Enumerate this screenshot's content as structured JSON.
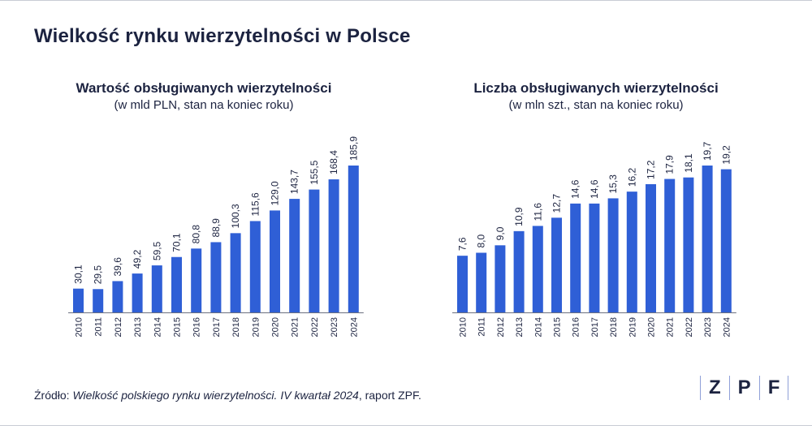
{
  "title": "Wielkość rynku wierzytelności w Polsce",
  "source": {
    "prefix": "Źródło: ",
    "italic": "Wielkość polskiego rynku wierzytelności. IV kwartał 2024",
    "suffix": ", raport ZPF."
  },
  "logo": {
    "letters": [
      "Z",
      "P",
      "F"
    ]
  },
  "colors": {
    "bar": "#2f5fd6",
    "text": "#1c2340",
    "axis": "#6b7080"
  },
  "chart_data": [
    {
      "type": "bar",
      "title": "Wartość obsługiwanych wierzytelności",
      "subtitle": "(w mld PLN, stan na koniec roku)",
      "categories": [
        "2010",
        "2011",
        "2012",
        "2013",
        "2014",
        "2015",
        "2016",
        "2017",
        "2018",
        "2019",
        "2020",
        "2021",
        "2022",
        "2023",
        "2024"
      ],
      "values": [
        30.1,
        29.5,
        39.6,
        49.2,
        59.5,
        70.1,
        80.8,
        88.9,
        100.3,
        115.6,
        129.0,
        143.7,
        155.5,
        168.4,
        185.9
      ],
      "labels": [
        "30,1",
        "29,5",
        "39,6",
        "49,2",
        "59,5",
        "70,1",
        "80,8",
        "88,9",
        "100,3",
        "115,6",
        "129,0",
        "143,7",
        "155,5",
        "168,4",
        "185,9"
      ],
      "ylim": [
        0,
        185.9
      ]
    },
    {
      "type": "bar",
      "title": "Liczba obsługiwanych wierzytelności",
      "subtitle": "(w mln szt., stan na koniec  roku)",
      "categories": [
        "2010",
        "2011",
        "2012",
        "2013",
        "2014",
        "2015",
        "2016",
        "2017",
        "2018",
        "2019",
        "2020",
        "2021",
        "2022",
        "2023",
        "2024"
      ],
      "values": [
        7.6,
        8.0,
        9.0,
        10.9,
        11.6,
        12.7,
        14.6,
        14.6,
        15.3,
        16.2,
        17.2,
        17.9,
        18.1,
        19.7,
        19.2
      ],
      "labels": [
        "7,6",
        "8,0",
        "9,0",
        "10,9",
        "11,6",
        "12,7",
        "14,6",
        "14,6",
        "15,3",
        "16,2",
        "17,2",
        "17,9",
        "18,1",
        "19,7",
        "19,2"
      ],
      "ylim": [
        0,
        19.7
      ]
    }
  ]
}
